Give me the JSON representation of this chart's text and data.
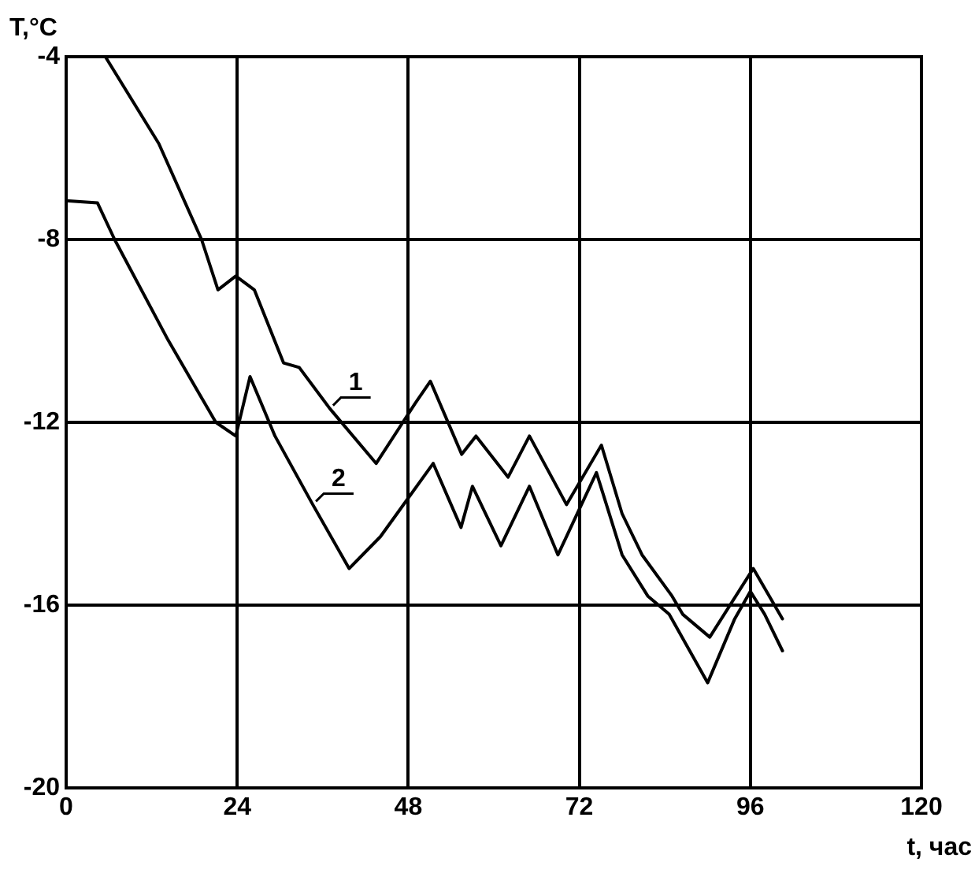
{
  "chart_data": {
    "type": "line",
    "xlabel": "t, час",
    "ylabel": "T,°C",
    "xlim": [
      0,
      120
    ],
    "xticks": [
      0,
      24,
      48,
      72,
      96,
      120
    ],
    "ylim": [
      -20,
      -4
    ],
    "yticks": [
      -20,
      -16,
      -12,
      -8,
      -4
    ],
    "grid": true,
    "legend": false,
    "marker": "none",
    "line_style": "solid",
    "series": [
      {
        "name": "1",
        "color": "#000000",
        "x": [
          5.5,
          13,
          19,
          21.3,
          23.8,
          26.4,
          30.5,
          32.7,
          37,
          43.5,
          48.9,
          51.1,
          55.5,
          57.5,
          62,
          65,
          70.2,
          75.1,
          78,
          80.8,
          85,
          86.5,
          90.3,
          96.4,
          100.5
        ],
        "values": [
          -4,
          -5.9,
          -8,
          -9.1,
          -8.8,
          -9.1,
          -10.7,
          -10.8,
          -11.7,
          -12.9,
          -11.6,
          -11.1,
          -12.7,
          -12.3,
          -13.2,
          -12.3,
          -13.8,
          -12.5,
          -14,
          -14.9,
          -15.8,
          -16.2,
          -16.7,
          -15.2,
          -16.3
        ]
      },
      {
        "name": "2",
        "color": "#000000",
        "x": [
          0,
          4.4,
          6.8,
          14.3,
          21,
          23.8,
          25.8,
          29.3,
          34.6,
          39.7,
          44.1,
          51.5,
          55.4,
          57,
          61,
          65,
          69,
          74.4,
          78,
          81.6,
          84.6,
          90,
          93.8,
          96,
          98,
          100.5
        ],
        "values": [
          -7.15,
          -7.2,
          -8,
          -10.2,
          -12,
          -12.3,
          -11,
          -12.3,
          -13.8,
          -15.2,
          -14.5,
          -12.9,
          -14.3,
          -13.4,
          -14.7,
          -13.4,
          -14.9,
          -13.1,
          -14.9,
          -15.8,
          -16.2,
          -17.7,
          -16.3,
          -15.7,
          -16.2,
          -17
        ]
      }
    ]
  }
}
